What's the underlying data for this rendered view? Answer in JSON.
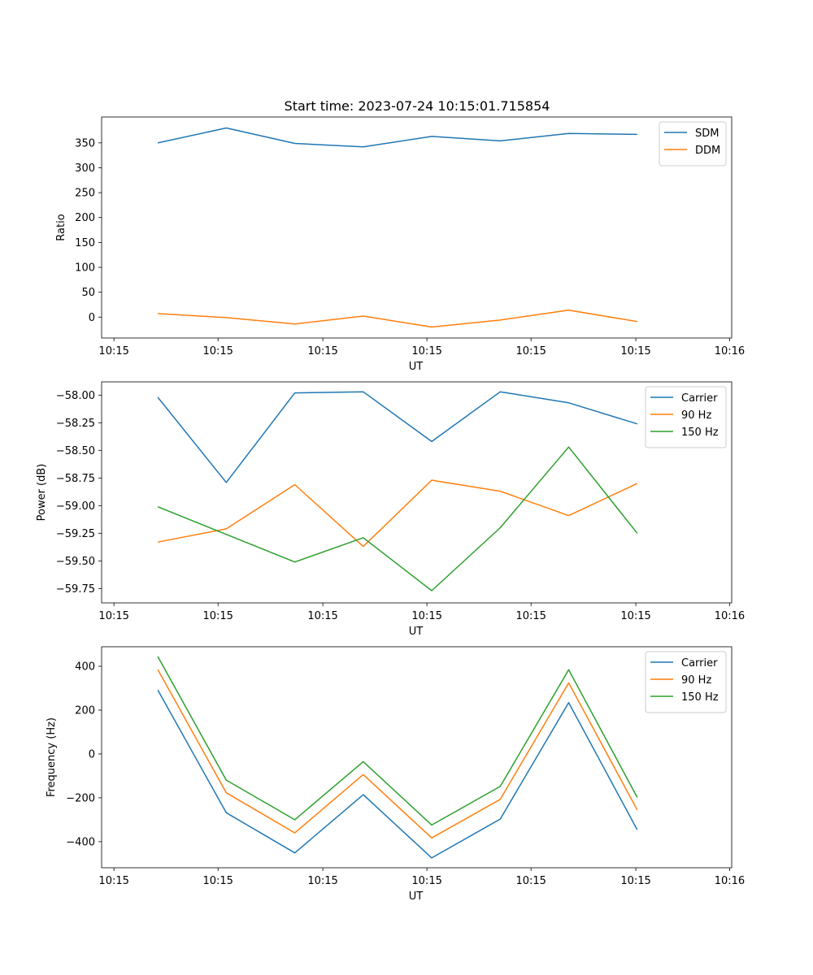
{
  "figure_title": "Start time: 2023-07-24 10:15:01.715854",
  "colors": {
    "blue": "#1f77b4",
    "orange": "#ff7f0e",
    "green": "#2ca02c"
  },
  "chart_data": [
    {
      "type": "line",
      "title": "Start time: 2023-07-24 10:15:01.715854",
      "xlabel": "UT",
      "ylabel": "Ratio",
      "x": [
        1,
        2,
        3,
        4,
        5,
        6,
        7,
        8
      ],
      "xlim": [
        0.18,
        9.38
      ],
      "xticks": [
        0.36,
        1.88,
        3.41,
        4.93,
        6.45,
        7.98,
        9.35
      ],
      "xtick_labels": [
        "10:15",
        "10:15",
        "10:15",
        "10:15",
        "10:15",
        "10:15",
        "10:16"
      ],
      "ylim": [
        -42,
        402
      ],
      "yticks": [
        0,
        50,
        100,
        150,
        200,
        250,
        300,
        350
      ],
      "ytick_labels": [
        "0",
        "50",
        "100",
        "150",
        "200",
        "250",
        "300",
        "350"
      ],
      "legend": "top-right",
      "grid": false,
      "series": [
        {
          "name": "SDM",
          "color": "#1f77b4",
          "values": [
            350,
            380,
            349,
            342,
            363,
            354,
            369,
            367
          ]
        },
        {
          "name": "DDM",
          "color": "#ff7f0e",
          "values": [
            7,
            -1,
            -14,
            2,
            -20,
            -6,
            14,
            -9
          ]
        }
      ]
    },
    {
      "type": "line",
      "title": "",
      "xlabel": "UT",
      "ylabel": "Power (dB)",
      "x": [
        1,
        2,
        3,
        4,
        5,
        6,
        7,
        8
      ],
      "xlim": [
        0.18,
        9.38
      ],
      "xticks": [
        0.36,
        1.88,
        3.41,
        4.93,
        6.45,
        7.98,
        9.35
      ],
      "xtick_labels": [
        "10:15",
        "10:15",
        "10:15",
        "10:15",
        "10:15",
        "10:15",
        "10:16"
      ],
      "ylim": [
        -59.88,
        -57.88
      ],
      "yticks": [
        -59.75,
        -59.5,
        -59.25,
        -59.0,
        -58.75,
        -58.5,
        -58.25,
        -58.0
      ],
      "ytick_labels": [
        "−59.75",
        "−59.50",
        "−59.25",
        "−59.00",
        "−58.75",
        "−58.50",
        "−58.25",
        "−58.00"
      ],
      "legend": "top-right",
      "grid": false,
      "series": [
        {
          "name": "Carrier",
          "color": "#1f77b4",
          "values": [
            -58.02,
            -58.79,
            -57.98,
            -57.97,
            -58.42,
            -57.97,
            -58.07,
            -58.26
          ]
        },
        {
          "name": "90 Hz",
          "color": "#ff7f0e",
          "values": [
            -59.33,
            -59.21,
            -58.81,
            -59.37,
            -58.77,
            -58.87,
            -59.09,
            -58.8
          ]
        },
        {
          "name": "150 Hz",
          "color": "#2ca02c",
          "values": [
            -59.01,
            -59.26,
            -59.51,
            -59.29,
            -59.77,
            -59.2,
            -58.47,
            -59.25
          ]
        }
      ]
    },
    {
      "type": "line",
      "title": "",
      "xlabel": "UT",
      "ylabel": "Frequency (Hz)",
      "x": [
        1,
        2,
        3,
        4,
        5,
        6,
        7,
        8
      ],
      "xlim": [
        0.18,
        9.38
      ],
      "xticks": [
        0.36,
        1.88,
        3.41,
        4.93,
        6.45,
        7.98,
        9.35
      ],
      "xtick_labels": [
        "10:15",
        "10:15",
        "10:15",
        "10:15",
        "10:15",
        "10:15",
        "10:16"
      ],
      "ylim": [
        -519,
        489
      ],
      "yticks": [
        -400,
        -200,
        0,
        200,
        400
      ],
      "ytick_labels": [
        "−400",
        "−200",
        "0",
        "200",
        "400"
      ],
      "legend": "top-right",
      "grid": false,
      "series": [
        {
          "name": "Carrier",
          "color": "#1f77b4",
          "values": [
            292,
            -268,
            -451,
            -186,
            -474,
            -297,
            234,
            -346
          ]
        },
        {
          "name": "90 Hz",
          "color": "#ff7f0e",
          "values": [
            385,
            -177,
            -360,
            -94,
            -383,
            -207,
            324,
            -255
          ]
        },
        {
          "name": "150 Hz",
          "color": "#2ca02c",
          "values": [
            444,
            -119,
            -300,
            -35,
            -324,
            -148,
            384,
            -198
          ]
        }
      ]
    }
  ]
}
